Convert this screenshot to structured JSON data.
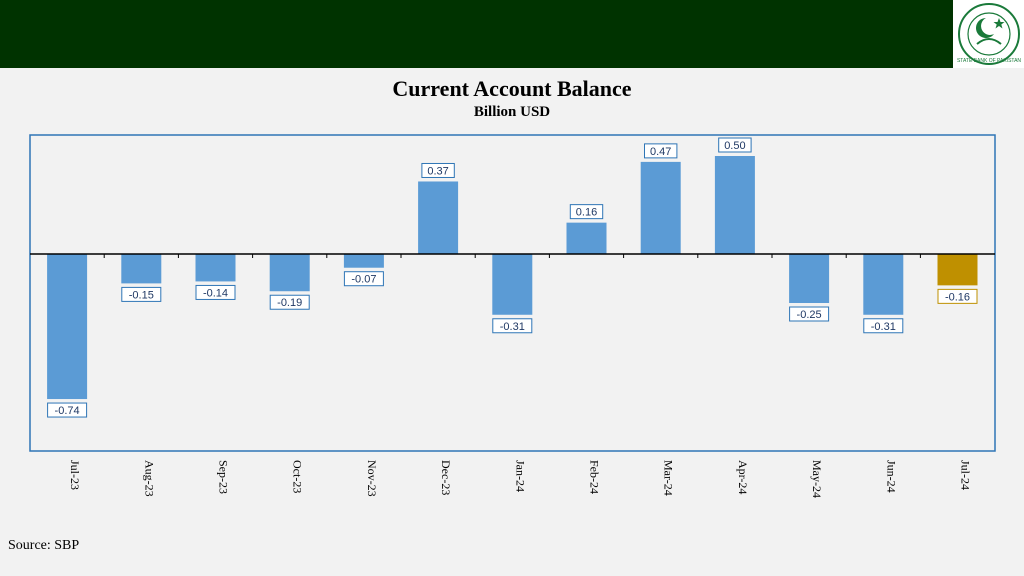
{
  "header": {
    "logo_text": "STATE BANK OF PAKISTAN"
  },
  "source": "Source: SBP",
  "colors": {
    "negative": "#5b9bd5",
    "positive": "#5b9bd5",
    "highlight": "#bf9000",
    "frame": "#2e75b6",
    "topbar": "#003300"
  },
  "chart_data": {
    "type": "bar",
    "title": "Current Account Balance",
    "subtitle": "Billion USD",
    "xlabel": "",
    "ylabel": "",
    "categories": [
      "Jul-23",
      "Aug-23",
      "Sep-23",
      "Oct-23",
      "Nov-23",
      "Dec-23",
      "Jan-24",
      "Feb-24",
      "Mar-24",
      "Apr-24",
      "May-24",
      "Jun-24",
      "Jul-24"
    ],
    "series": [
      {
        "values": [
          -0.74,
          -0.15,
          -0.14,
          -0.19,
          -0.07,
          0.37,
          -0.31,
          0.16,
          0.47,
          0.5,
          -0.25,
          -0.31,
          -0.16
        ]
      }
    ],
    "data_labels": [
      "-0.74",
      "-0.15",
      "-0.14",
      "-0.19",
      "-0.07",
      "0.37",
      "-0.31",
      "0.16",
      "0.47",
      "0.50",
      "-0.25",
      "-0.31",
      "-0.16"
    ],
    "highlight_index": 12,
    "ylim": [
      -1.0,
      0.6
    ],
    "grid": false,
    "legend": "none"
  }
}
